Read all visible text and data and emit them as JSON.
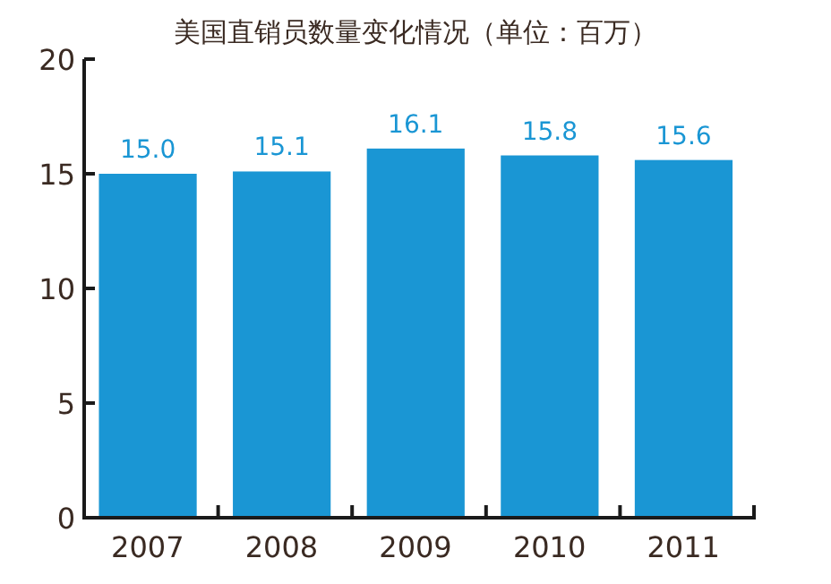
{
  "chart_data": {
    "type": "bar",
    "title": "美国直销员数量变化情况（单位：百万）",
    "categories": [
      "2007",
      "2008",
      "2009",
      "2010",
      "2011"
    ],
    "values": [
      15.0,
      15.1,
      16.1,
      15.8,
      15.6
    ],
    "color": "#1a96d4",
    "ylim": [
      0,
      20
    ],
    "yticks": [
      0,
      5,
      10,
      15,
      20
    ],
    "value_labels": [
      "15.0",
      "15.1",
      "16.1",
      "15.8",
      "15.6"
    ],
    "grid": false
  }
}
